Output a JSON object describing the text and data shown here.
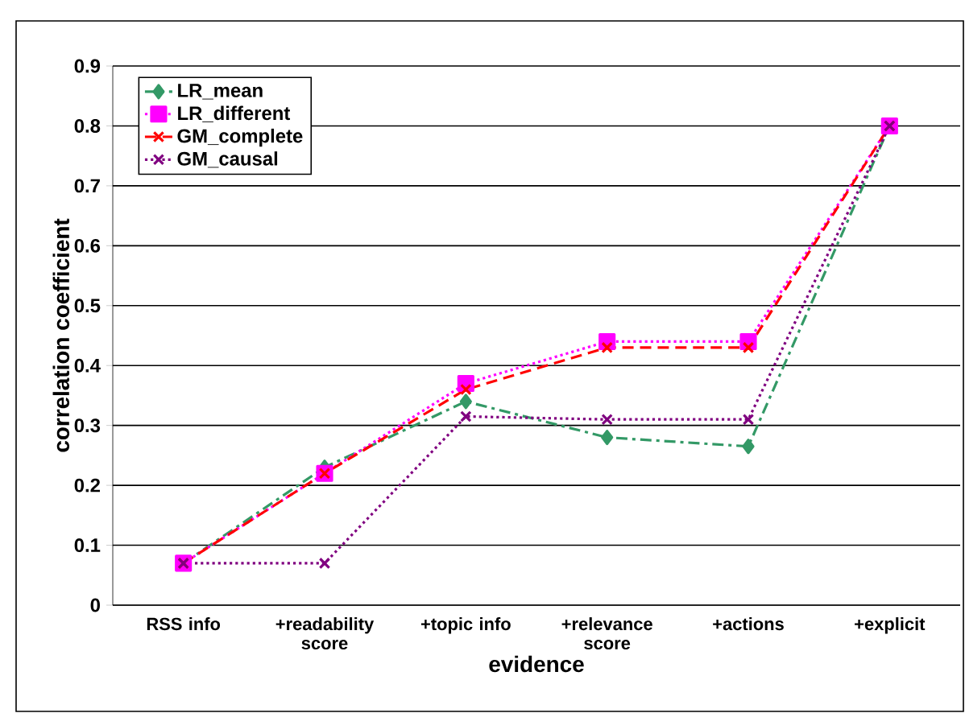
{
  "chart_data": {
    "type": "line",
    "xlabel": "evidence",
    "ylabel": "correlation coefficient",
    "categories": [
      "RSS info",
      "+readability score",
      "+topic info",
      "+relevance score",
      "+actions",
      "+explicit"
    ],
    "series": [
      {
        "name": "LR_mean",
        "color": "#339966",
        "marker": "diamond",
        "line_style": "dashdotted",
        "values": [
          0.07,
          0.23,
          0.34,
          0.28,
          0.265,
          0.8
        ]
      },
      {
        "name": "LR_different",
        "color": "#ff00ff",
        "marker": "square",
        "line_style": "dotted",
        "values": [
          0.07,
          0.22,
          0.37,
          0.44,
          0.44,
          0.8
        ]
      },
      {
        "name": "GM_complete",
        "color": "#ff0000",
        "marker": "cross",
        "line_style": "dashed",
        "values": [
          0.07,
          0.22,
          0.36,
          0.43,
          0.43,
          0.8
        ]
      },
      {
        "name": "GM_causal",
        "color": "#800080",
        "marker": "cross",
        "line_style": "dotted",
        "values": [
          0.07,
          0.07,
          0.315,
          0.31,
          0.31,
          0.8
        ]
      }
    ],
    "ylim": [
      0,
      0.9
    ],
    "yticks": [
      0,
      0.1,
      0.2,
      0.3,
      0.4,
      0.5,
      0.6,
      0.7,
      0.8,
      0.9
    ],
    "grid": "y",
    "legend": "top left"
  }
}
